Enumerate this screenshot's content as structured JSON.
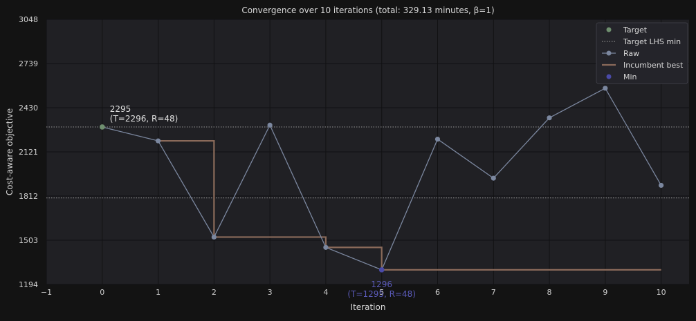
{
  "chart_data": {
    "type": "line",
    "title": "Convergence over 10 iterations (total: 329.13 minutes, β=1)",
    "xlabel": "Iteration",
    "ylabel": "Cost-aware objective",
    "xlim": [
      -1,
      10.5
    ],
    "ylim": [
      1194,
      3048
    ],
    "xticks": [
      "−1",
      "0",
      "1",
      "2",
      "3",
      "4",
      "5",
      "6",
      "7",
      "8",
      "9",
      "10"
    ],
    "yticks": [
      "1194",
      "1503",
      "1812",
      "2121",
      "2430",
      "2739",
      "3048"
    ],
    "grid": true,
    "legend_position": "top-right",
    "legend": [
      "Target",
      "Target LHS min",
      "Raw",
      "Incumbent best",
      "Min"
    ],
    "colors": {
      "raw": "#7b879f",
      "incumbent": "#8a6a5a",
      "target": "#6f8f6f",
      "min": "#4a4aa8",
      "min_label": "#5a5ab8",
      "hline": "#8a8a8a"
    },
    "hlines": [
      2295,
      1799
    ],
    "series": [
      {
        "name": "Raw",
        "x": [
          0,
          1,
          2,
          3,
          4,
          5,
          6,
          7,
          8,
          9,
          10
        ],
        "y": [
          2295,
          2198,
          1525,
          2308,
          1453,
          1296,
          2210,
          1937,
          2359,
          2566,
          1887
        ]
      },
      {
        "name": "Incumbent best",
        "x": [
          1,
          2,
          2,
          4,
          4,
          5,
          5,
          10
        ],
        "y": [
          2198,
          2198,
          1525,
          1525,
          1453,
          1453,
          1296,
          1296
        ]
      }
    ],
    "target_point": {
      "x": 0,
      "y": 2295
    },
    "min_point": {
      "x": 5,
      "y": 1296
    },
    "annotations": [
      {
        "key": "target",
        "text": [
          "2295",
          "(T=2296, R=48)"
        ]
      },
      {
        "key": "min",
        "text": [
          "1296",
          "(T=1295, R=48)"
        ]
      }
    ]
  }
}
